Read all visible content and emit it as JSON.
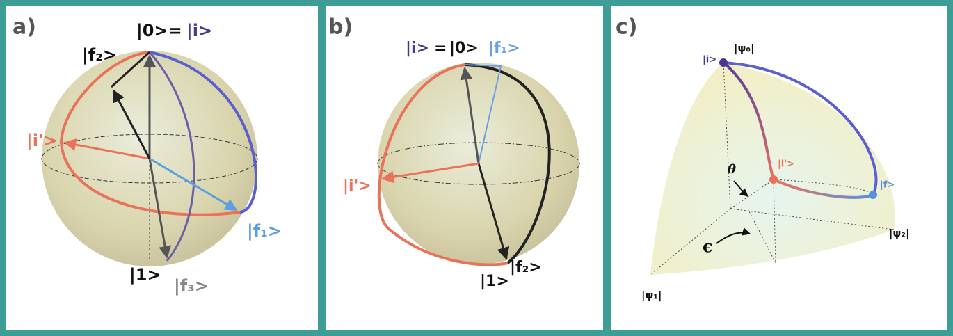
{
  "panels": [
    {
      "label": "a)",
      "states": [
        "|0>=",
        "|i>",
        "|f₂>",
        "|i'>",
        "|f₁>",
        "|1>",
        "|f₃>"
      ]
    },
    {
      "label": "b)",
      "states": [
        "|i>",
        "=",
        "|0>",
        "|f₁>",
        "|i'>",
        "|1>",
        "|f₂>"
      ]
    },
    {
      "label": "c)",
      "states": [
        "|ψ₀|",
        "|i>",
        "|i'>",
        "|f>",
        "θ",
        "ϵ",
        "|ψ₂|",
        "|ψ₁|"
      ]
    }
  ]
}
